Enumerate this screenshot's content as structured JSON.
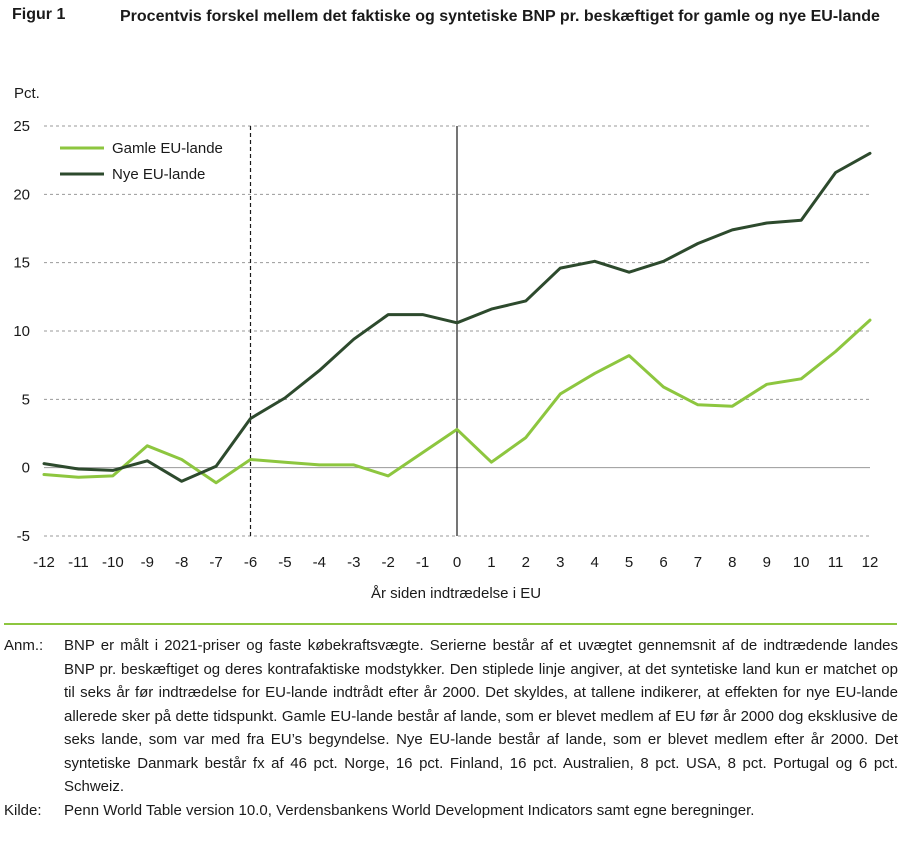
{
  "figure": {
    "label": "Figur 1",
    "title": "Procentvis forskel mellem det faktiske og syntetiske BNP pr. beskæftiget for gamle og nye EU-lande"
  },
  "chart_data": {
    "type": "line",
    "ylabel": "Pct.",
    "xlabel": "År siden indtrædelse i EU",
    "ylim": [
      -5,
      25
    ],
    "yticks": [
      "-5",
      "0",
      "5",
      "10",
      "15",
      "20",
      "25"
    ],
    "x": [
      -12,
      -11,
      -10,
      -9,
      -8,
      -7,
      -6,
      -5,
      -4,
      -3,
      -2,
      -1,
      0,
      1,
      2,
      3,
      4,
      5,
      6,
      7,
      8,
      9,
      10,
      11,
      12
    ],
    "xtick_labels": [
      "-12",
      "-11",
      "-10",
      "-9",
      "-8",
      "-7",
      "-6",
      "-5",
      "-4",
      "-3",
      "-2",
      "-1",
      "0",
      "1",
      "2",
      "3",
      "4",
      "5",
      "6",
      "7",
      "8",
      "9",
      "10",
      "11",
      "12"
    ],
    "grid": "horizontal dashed",
    "legend_position": "top-left",
    "series": [
      {
        "name": "Gamle EU-lande",
        "color": "#8dc63f",
        "values": [
          -0.5,
          -0.7,
          -0.6,
          1.6,
          0.6,
          -1.1,
          0.6,
          0.4,
          0.2,
          0.2,
          -0.6,
          1.1,
          2.8,
          0.4,
          2.2,
          5.4,
          6.9,
          8.2,
          5.9,
          4.6,
          4.5,
          6.1,
          6.5,
          8.5,
          10.8
        ]
      },
      {
        "name": "Nye EU-lande",
        "color": "#2d4a2d",
        "values": [
          0.3,
          -0.1,
          -0.2,
          0.5,
          -1.0,
          0.1,
          3.6,
          5.1,
          7.1,
          9.4,
          11.2,
          11.2,
          10.6,
          11.6,
          12.2,
          14.6,
          15.1,
          14.3,
          15.1,
          16.4,
          17.4,
          17.9,
          18.1,
          21.6,
          23.0
        ]
      }
    ],
    "vertical_lines": [
      {
        "x": -6,
        "style": "dashed"
      },
      {
        "x": 0,
        "style": "solid"
      }
    ]
  },
  "notes": [
    {
      "key": "Anm.:",
      "text": "BNP er målt i 2021-priser og faste købekraftsvægte. Serierne består af et uvægtet gennemsnit af de indtrædende landes BNP pr. beskæftiget og deres kontrafaktiske modstykker. Den stiplede linje angiver, at det syntetiske land kun er matchet op til seks år før indtrædelse for EU-lande indtrådt efter år 2000. Det skyldes, at tallene indikerer, at effekten for nye EU-lande allerede sker på dette tidspunkt. Gamle EU-lande består af lande, som er blevet medlem af EU før år 2000 dog eksklusive de seks lande, som var med fra EU’s begyndelse. Nye EU-lande består af lande, som er blevet medlem efter år 2000. Det syntetiske Danmark består fx af 46 pct. Norge, 16 pct. Finland, 16 pct. Australien, 8 pct. USA, 8 pct. Portugal og 6 pct. Schweiz."
    },
    {
      "key": "Kilde:",
      "text": "Penn World Table version 10.0, Verdensbankens World Development Indicators samt egne beregninger."
    }
  ]
}
